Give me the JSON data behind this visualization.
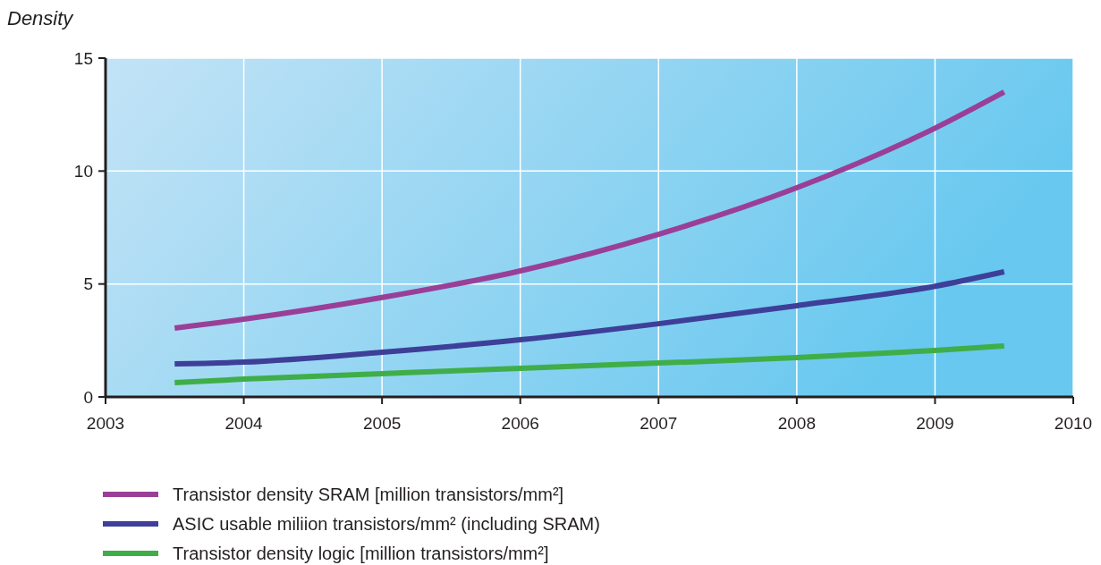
{
  "chart_data": {
    "type": "line",
    "ylabel": "Density",
    "x": [
      2003.5,
      2004,
      2005,
      2006,
      2007,
      2008,
      2009,
      2009.5
    ],
    "xlim": [
      2003,
      2010
    ],
    "xticks": [
      2003,
      2004,
      2005,
      2006,
      2007,
      2008,
      2009,
      2010
    ],
    "ylim": [
      0,
      15
    ],
    "yticks": [
      0,
      5,
      10,
      15
    ],
    "grid": true,
    "legend": "bottom",
    "marker": "none",
    "line_style": "solid",
    "series": [
      {
        "name": "Transistor density SRAM [million transistors/mm²]",
        "color": "#9a3f98",
        "values": [
          3.05,
          3.44,
          4.4,
          5.58,
          7.2,
          9.26,
          11.9,
          13.5
        ]
      },
      {
        "name": "ASIC usable miliion transistors/mm² (including SRAM)",
        "color": "#3d3f98",
        "values": [
          1.46,
          1.54,
          1.98,
          2.53,
          3.24,
          4.04,
          4.9,
          5.54
        ]
      },
      {
        "name": "Transistor density logic [million transistors/mm²]",
        "color": "#3fae49",
        "values": [
          0.63,
          0.79,
          1.03,
          1.27,
          1.5,
          1.74,
          2.06,
          2.26
        ]
      }
    ]
  }
}
